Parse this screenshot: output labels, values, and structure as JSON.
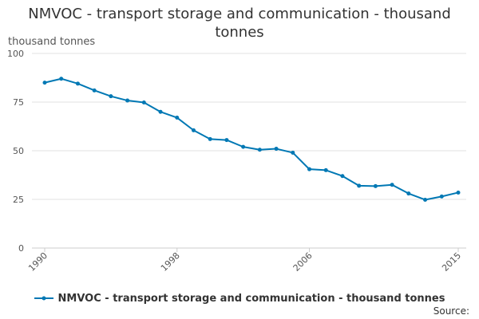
{
  "chart_data": {
    "type": "line",
    "title": "NMVOC - transport storage and communication - thousand tonnes",
    "title_lines": [
      "NMVOC - transport storage and communication - thousand",
      "tonnes"
    ],
    "ylabel": "thousand tonnes",
    "xlabel": "",
    "xlim": [
      1990,
      2015
    ],
    "ylim": [
      0,
      100
    ],
    "yticks": [
      0,
      25,
      50,
      75,
      100
    ],
    "xticks": [
      "1990",
      "1998",
      "2006",
      "2015"
    ],
    "grid": "horizontal",
    "legend_position": "bottom",
    "x": [
      1990,
      1991,
      1992,
      1993,
      1994,
      1995,
      1996,
      1997,
      1998,
      1999,
      2000,
      2001,
      2002,
      2003,
      2004,
      2005,
      2006,
      2007,
      2008,
      2009,
      2010,
      2011,
      2012,
      2013,
      2014,
      2015
    ],
    "series": [
      {
        "name": "NMVOC - transport storage and communication - thousand tonnes",
        "color": "#0078b4",
        "values": [
          85,
          87,
          84.5,
          81,
          78,
          75.8,
          74.8,
          70,
          67,
          60.5,
          56,
          55.5,
          52,
          50.5,
          51,
          49,
          40.5,
          40,
          37,
          32,
          31.8,
          32.5,
          28,
          24.8,
          26.5,
          28.5
        ]
      }
    ]
  },
  "source_label": "Source:"
}
